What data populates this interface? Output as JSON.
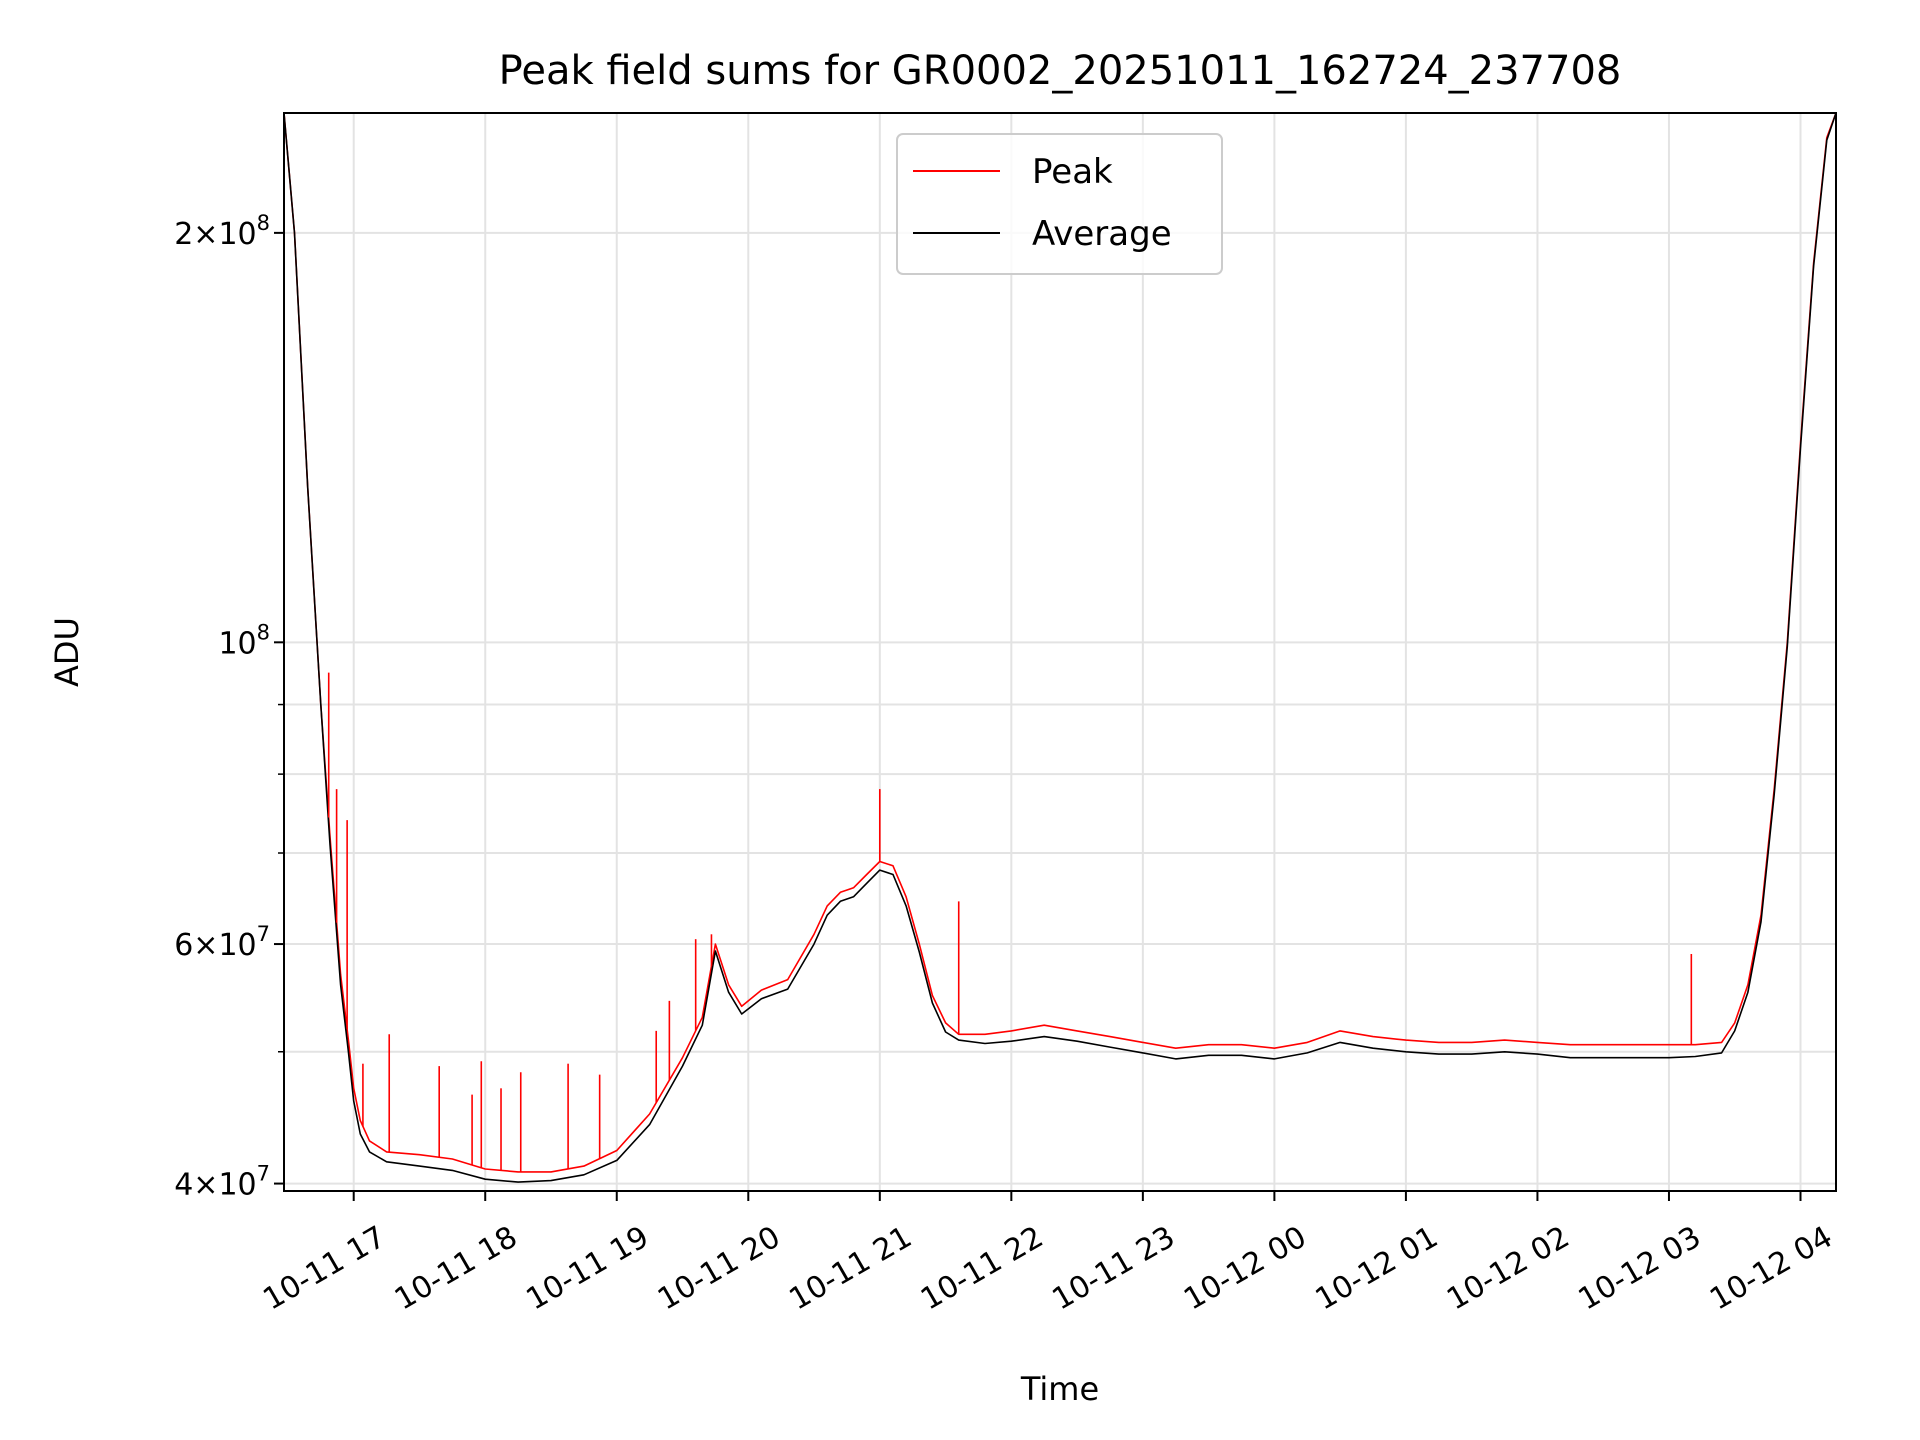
{
  "chart_data": {
    "type": "line",
    "title": "Peak field sums for GR0002_20251011_162724_237708",
    "xlabel": "Time",
    "ylabel": "ADU",
    "yscale": "log",
    "ylim": [
      39500000,
      245000000
    ],
    "xlim_hours": [
      16.47,
      28.27
    ],
    "x_start_label": "10-11 16:28",
    "x_end_label": "10-12 04:16",
    "grid": true,
    "legend_position": "top-center",
    "x_tick_hours": [
      17,
      18,
      19,
      20,
      21,
      22,
      23,
      24,
      25,
      26,
      27,
      28
    ],
    "x_tick_labels": [
      "10-11 17",
      "10-11 18",
      "10-11 19",
      "10-11 20",
      "10-11 21",
      "10-11 22",
      "10-11 23",
      "10-12 00",
      "10-12 01",
      "10-12 02",
      "10-12 03",
      "10-12 04"
    ],
    "y_major_ticks": [
      {
        "value": 40000000,
        "mantissa": "4",
        "exp": "7"
      },
      {
        "value": 60000000,
        "mantissa": "6",
        "exp": "7"
      },
      {
        "value": 100000000,
        "mantissa": "",
        "exp": "8"
      },
      {
        "value": 200000000,
        "mantissa": "2",
        "exp": "8"
      }
    ],
    "y_minor_ticks": [
      50000000,
      70000000,
      80000000,
      90000000,
      300000000
    ],
    "series": [
      {
        "name": "Peak",
        "color": "#ff0000",
        "x_hours": [
          16.47,
          16.55,
          16.65,
          16.75,
          16.82,
          16.9,
          16.96,
          17.0,
          17.05,
          17.12,
          17.25,
          17.5,
          17.75,
          18.0,
          18.25,
          18.5,
          18.75,
          19.0,
          19.25,
          19.5,
          19.65,
          19.75,
          19.85,
          19.95,
          20.1,
          20.3,
          20.5,
          20.6,
          20.7,
          20.8,
          20.9,
          21.0,
          21.1,
          21.2,
          21.3,
          21.4,
          21.5,
          21.6,
          21.8,
          22.0,
          22.25,
          22.5,
          22.75,
          23.0,
          23.25,
          23.5,
          23.75,
          24.0,
          24.25,
          24.5,
          24.75,
          25.0,
          25.25,
          25.5,
          25.75,
          26.0,
          26.25,
          26.5,
          26.75,
          27.0,
          27.2,
          27.4,
          27.5,
          27.6,
          27.7,
          27.8,
          27.9,
          28.0,
          28.1,
          28.2,
          28.27
        ],
        "values": [
          245000000,
          200000000,
          130000000,
          90000000,
          72000000,
          57000000,
          51000000,
          47000000,
          44500000,
          43000000,
          42200000,
          42000000,
          41700000,
          41000000,
          40800000,
          40800000,
          41200000,
          42300000,
          45000000,
          49500000,
          53000000,
          60000000,
          56000000,
          54000000,
          55500000,
          56500000,
          61000000,
          64000000,
          65500000,
          66000000,
          67500000,
          69000000,
          68500000,
          65000000,
          60000000,
          55000000,
          52500000,
          51500000,
          51500000,
          51800000,
          52300000,
          51800000,
          51300000,
          50800000,
          50300000,
          50600000,
          50600000,
          50300000,
          50800000,
          51800000,
          51300000,
          51000000,
          50800000,
          50800000,
          51000000,
          50800000,
          50600000,
          50600000,
          50600000,
          50600000,
          50600000,
          50800000,
          52500000,
          56000000,
          63000000,
          78000000,
          100000000,
          140000000,
          190000000,
          235000000,
          245000000
        ]
      },
      {
        "name": "Average",
        "color": "#000000",
        "x_hours": [
          16.47,
          16.55,
          16.65,
          16.75,
          16.82,
          16.9,
          16.96,
          17.0,
          17.05,
          17.12,
          17.25,
          17.5,
          17.75,
          18.0,
          18.25,
          18.5,
          18.75,
          19.0,
          19.25,
          19.5,
          19.65,
          19.75,
          19.85,
          19.95,
          20.1,
          20.3,
          20.5,
          20.6,
          20.7,
          20.8,
          20.9,
          21.0,
          21.1,
          21.2,
          21.3,
          21.4,
          21.5,
          21.6,
          21.8,
          22.0,
          22.25,
          22.5,
          22.75,
          23.0,
          23.25,
          23.5,
          23.75,
          24.0,
          24.25,
          24.5,
          24.75,
          25.0,
          25.25,
          25.5,
          25.75,
          26.0,
          26.25,
          26.5,
          26.75,
          27.0,
          27.2,
          27.4,
          27.5,
          27.6,
          27.7,
          27.8,
          27.9,
          28.0,
          28.1,
          28.2,
          28.27
        ],
        "values": [
          245000000,
          200000000,
          130000000,
          90000000,
          71000000,
          56000000,
          50000000,
          46000000,
          43500000,
          42200000,
          41500000,
          41200000,
          40900000,
          40300000,
          40100000,
          40200000,
          40600000,
          41600000,
          44200000,
          48800000,
          52300000,
          59300000,
          55300000,
          53300000,
          54700000,
          55600000,
          60000000,
          63000000,
          64500000,
          65000000,
          66500000,
          68000000,
          67500000,
          64000000,
          59200000,
          54300000,
          51700000,
          51000000,
          50700000,
          50900000,
          51300000,
          50900000,
          50400000,
          49900000,
          49400000,
          49700000,
          49700000,
          49400000,
          49900000,
          50800000,
          50300000,
          50000000,
          49800000,
          49800000,
          50000000,
          49800000,
          49500000,
          49500000,
          49500000,
          49500000,
          49600000,
          49900000,
          51800000,
          55300000,
          62300000,
          77300000,
          99300000,
          139000000,
          189000000,
          234000000,
          245000000
        ]
      }
    ],
    "spikes": {
      "Peak": [
        {
          "x_hour": 16.81,
          "value": 95000000
        },
        {
          "x_hour": 16.87,
          "value": 78000000
        },
        {
          "x_hour": 16.95,
          "value": 74000000
        },
        {
          "x_hour": 17.07,
          "value": 49000000
        },
        {
          "x_hour": 17.27,
          "value": 51500000
        },
        {
          "x_hour": 17.65,
          "value": 48800000
        },
        {
          "x_hour": 17.9,
          "value": 46500000
        },
        {
          "x_hour": 17.97,
          "value": 49200000
        },
        {
          "x_hour": 18.12,
          "value": 47000000
        },
        {
          "x_hour": 18.27,
          "value": 48300000
        },
        {
          "x_hour": 18.63,
          "value": 49000000
        },
        {
          "x_hour": 18.87,
          "value": 48100000
        },
        {
          "x_hour": 19.3,
          "value": 51800000
        },
        {
          "x_hour": 19.4,
          "value": 54500000
        },
        {
          "x_hour": 19.6,
          "value": 60500000
        },
        {
          "x_hour": 19.72,
          "value": 61000000
        },
        {
          "x_hour": 21.0,
          "value": 78000000
        },
        {
          "x_hour": 21.6,
          "value": 64500000
        },
        {
          "x_hour": 27.17,
          "value": 59000000
        }
      ]
    }
  }
}
